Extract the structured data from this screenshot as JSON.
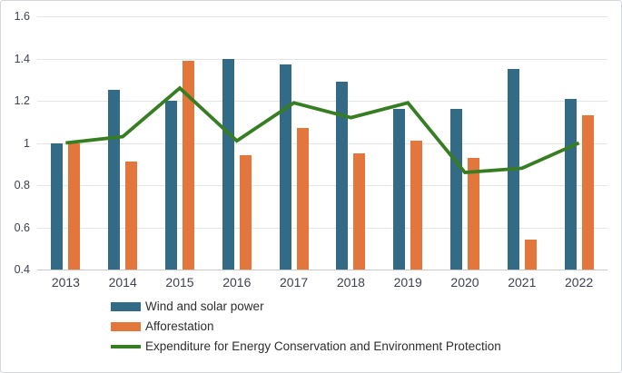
{
  "chart_data": {
    "type": "bar",
    "subtype": "grouped bars with line overlay (combo chart)",
    "title": "",
    "xlabel": "",
    "ylabel": "",
    "categories": [
      "2013",
      "2014",
      "2015",
      "2016",
      "2017",
      "2018",
      "2019",
      "2020",
      "2021",
      "2022"
    ],
    "series": [
      {
        "name": "Wind and solar power",
        "type": "bar",
        "color": "#336b87",
        "values": [
          1.0,
          1.25,
          1.2,
          1.4,
          1.37,
          1.29,
          1.16,
          1.16,
          1.35,
          1.21
        ]
      },
      {
        "name": "Afforestation",
        "type": "bar",
        "color": "#e2763c",
        "values": [
          1.0,
          0.91,
          1.39,
          0.94,
          1.07,
          0.95,
          1.01,
          0.93,
          0.54,
          1.13
        ]
      },
      {
        "name": "Expenditure for Energy Conservation and Environment Protection",
        "type": "line",
        "color": "#377d22",
        "values": [
          1.0,
          1.03,
          1.26,
          1.01,
          1.19,
          1.12,
          1.19,
          0.86,
          0.88,
          1.0
        ]
      }
    ],
    "ylim": [
      0.4,
      1.6
    ],
    "yticks": [
      {
        "v": 0.4,
        "label": "0.4"
      },
      {
        "v": 0.6,
        "label": "0.6"
      },
      {
        "v": 0.8,
        "label": "0.8"
      },
      {
        "v": 1.0,
        "label": "1"
      },
      {
        "v": 1.2,
        "label": "1.2"
      },
      {
        "v": 1.4,
        "label": "1.4"
      },
      {
        "v": 1.6,
        "label": "1.6"
      }
    ],
    "grid": true,
    "legend_position": "bottom, left-indented, vertical stack"
  },
  "styles": {
    "grid_color": "#e5e5e5",
    "axis_line_color": "#c9c9c9",
    "axis_text_color": "#3e4151",
    "legend_text_color": "#2e2e2e",
    "background": "#ffffff",
    "border_color": "#d3d6da"
  }
}
